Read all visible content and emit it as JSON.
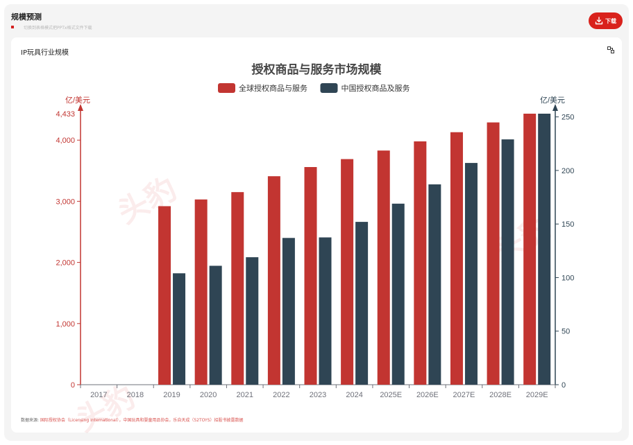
{
  "header": {
    "title": "规模预测",
    "subtitle": "切换到表格模式把PPTx格式文件下载",
    "download_label": "下载"
  },
  "card": {
    "title": "IP玩具行业规模"
  },
  "source": {
    "label": "数据来源:",
    "text": "国际授权协会（Licensing International），中国玩具和婴童用品协会，乐自天成（52TOYS）招股书披露数据"
  },
  "watermark": {
    "text": "头豹",
    "subtext": "LeadLeo"
  },
  "colors": {
    "accent": "#d9221c",
    "global_series": "#c23531",
    "china_series": "#2f4554"
  },
  "chart_data": {
    "type": "bar",
    "title": "授权商品与服务市场规模",
    "categories": [
      "2017",
      "2018",
      "2019",
      "2020",
      "2021",
      "2022",
      "2023",
      "2024",
      "2025E",
      "2026E",
      "2027E",
      "2028E",
      "2029E"
    ],
    "series": [
      {
        "name": "全球授权商品与服务",
        "axis": "left",
        "color": "#c23531",
        "values": [
          null,
          null,
          2920,
          3030,
          3150,
          3410,
          3560,
          3690,
          3830,
          3980,
          4130,
          4290,
          4433
        ]
      },
      {
        "name": "中国授权商品及服务",
        "axis": "right",
        "color": "#2f4554",
        "values": [
          null,
          null,
          104,
          111,
          119,
          137,
          137.5,
          152,
          169,
          187,
          207,
          229,
          253
        ]
      }
    ],
    "y_left": {
      "label": "亿/美元",
      "ylim": [
        0,
        4433
      ],
      "ticks": [
        0,
        1000,
        2000,
        3000,
        4000
      ],
      "tick_labels": [
        "0",
        "1,000",
        "2,000",
        "3,000",
        "4,000"
      ],
      "max_label": "4,433"
    },
    "y_right": {
      "label": "亿/美元",
      "ylim": [
        0,
        253
      ],
      "ticks": [
        0,
        50,
        100,
        150,
        200,
        250
      ],
      "tick_labels": [
        "0",
        "50",
        "100",
        "150",
        "200",
        "250"
      ]
    },
    "legend_position": "top-center",
    "grid": false
  }
}
